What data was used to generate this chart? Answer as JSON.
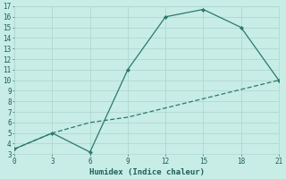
{
  "line1_x": [
    0,
    3,
    6,
    9,
    12,
    15,
    18,
    21
  ],
  "line1_y": [
    3.5,
    5,
    3.2,
    11,
    16,
    16.7,
    15,
    10
  ],
  "line2_x": [
    0,
    3,
    6,
    9,
    21
  ],
  "line2_y": [
    3.5,
    5,
    6,
    6.5,
    10
  ],
  "line_color": "#2a7a6a",
  "bg_color": "#c8ece6",
  "grid_color": "#b0d8d0",
  "xlabel": "Humidex (Indice chaleur)",
  "xlim": [
    0,
    21
  ],
  "ylim": [
    3,
    17
  ],
  "xticks": [
    0,
    3,
    6,
    9,
    12,
    15,
    18,
    21
  ],
  "yticks": [
    3,
    4,
    5,
    6,
    7,
    8,
    9,
    10,
    11,
    12,
    13,
    14,
    15,
    16,
    17
  ],
  "font_color": "#1e6058",
  "label_fontsize": 6.5,
  "tick_fontsize": 5.5
}
